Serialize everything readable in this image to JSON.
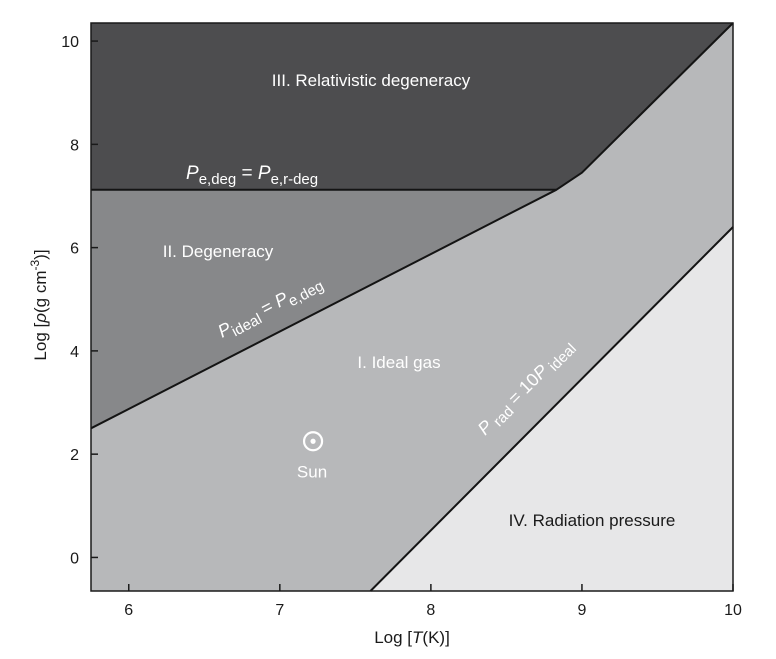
{
  "chart_data": {
    "type": "area",
    "xlabel": {
      "prefix": "Log [",
      "var": "T",
      "suffix": "(K)]"
    },
    "ylabel": {
      "prefix": "Log [",
      "var": "ρ",
      "mid": "(g cm",
      "sup": "-3",
      "suffix": ")]"
    },
    "xlim": [
      5.75,
      10.0
    ],
    "ylim": [
      -0.65,
      10.35
    ],
    "x_ticks": [
      6,
      7,
      8,
      9,
      10
    ],
    "y_ticks": [
      0,
      2,
      4,
      6,
      8,
      10
    ],
    "x_tick_labels": [
      "6",
      "7",
      "8",
      "9",
      "10"
    ],
    "y_tick_labels": [
      "0",
      "2",
      "4",
      "6",
      "8",
      "10"
    ],
    "grid": false,
    "regions": [
      {
        "name": "III. Relativistic degeneracy",
        "color": "#4d4d4f"
      },
      {
        "name": "II. Degeneracy",
        "color": "#87888a"
      },
      {
        "name": "I. Ideal gas",
        "color": "#b7b8ba"
      },
      {
        "name": "IV. Radiation pressure",
        "color": "#e7e7e8"
      }
    ],
    "boundaries": {
      "relativistic": {
        "x": [
          5.75,
          8.83
        ],
        "y": [
          7.12,
          7.12
        ]
      },
      "degeneracy": {
        "x": [
          5.75,
          8.83,
          9.0,
          10.0
        ],
        "y": [
          2.5,
          7.12,
          7.45,
          10.35
        ]
      },
      "radiation": {
        "x": [
          7.6,
          10.0
        ],
        "y": [
          -0.65,
          6.4
        ]
      }
    },
    "annotations": {
      "rel_eq": {
        "p": "P",
        "sub1": "e,deg",
        "eq": " = ",
        "p2": "P",
        "sub2": "e,r-deg"
      },
      "deg_eq": {
        "p": "P",
        "sub1": "ideal",
        "eq": " = ",
        "p2": "P",
        "sub2": "e,deg"
      },
      "rad_eq": {
        "p": "P",
        "sub1": " rad",
        "eq": " = 10",
        "p2": "P",
        "sub2": " ideal"
      }
    },
    "sun": {
      "x": 7.22,
      "y": 2.25,
      "label": "Sun"
    }
  }
}
